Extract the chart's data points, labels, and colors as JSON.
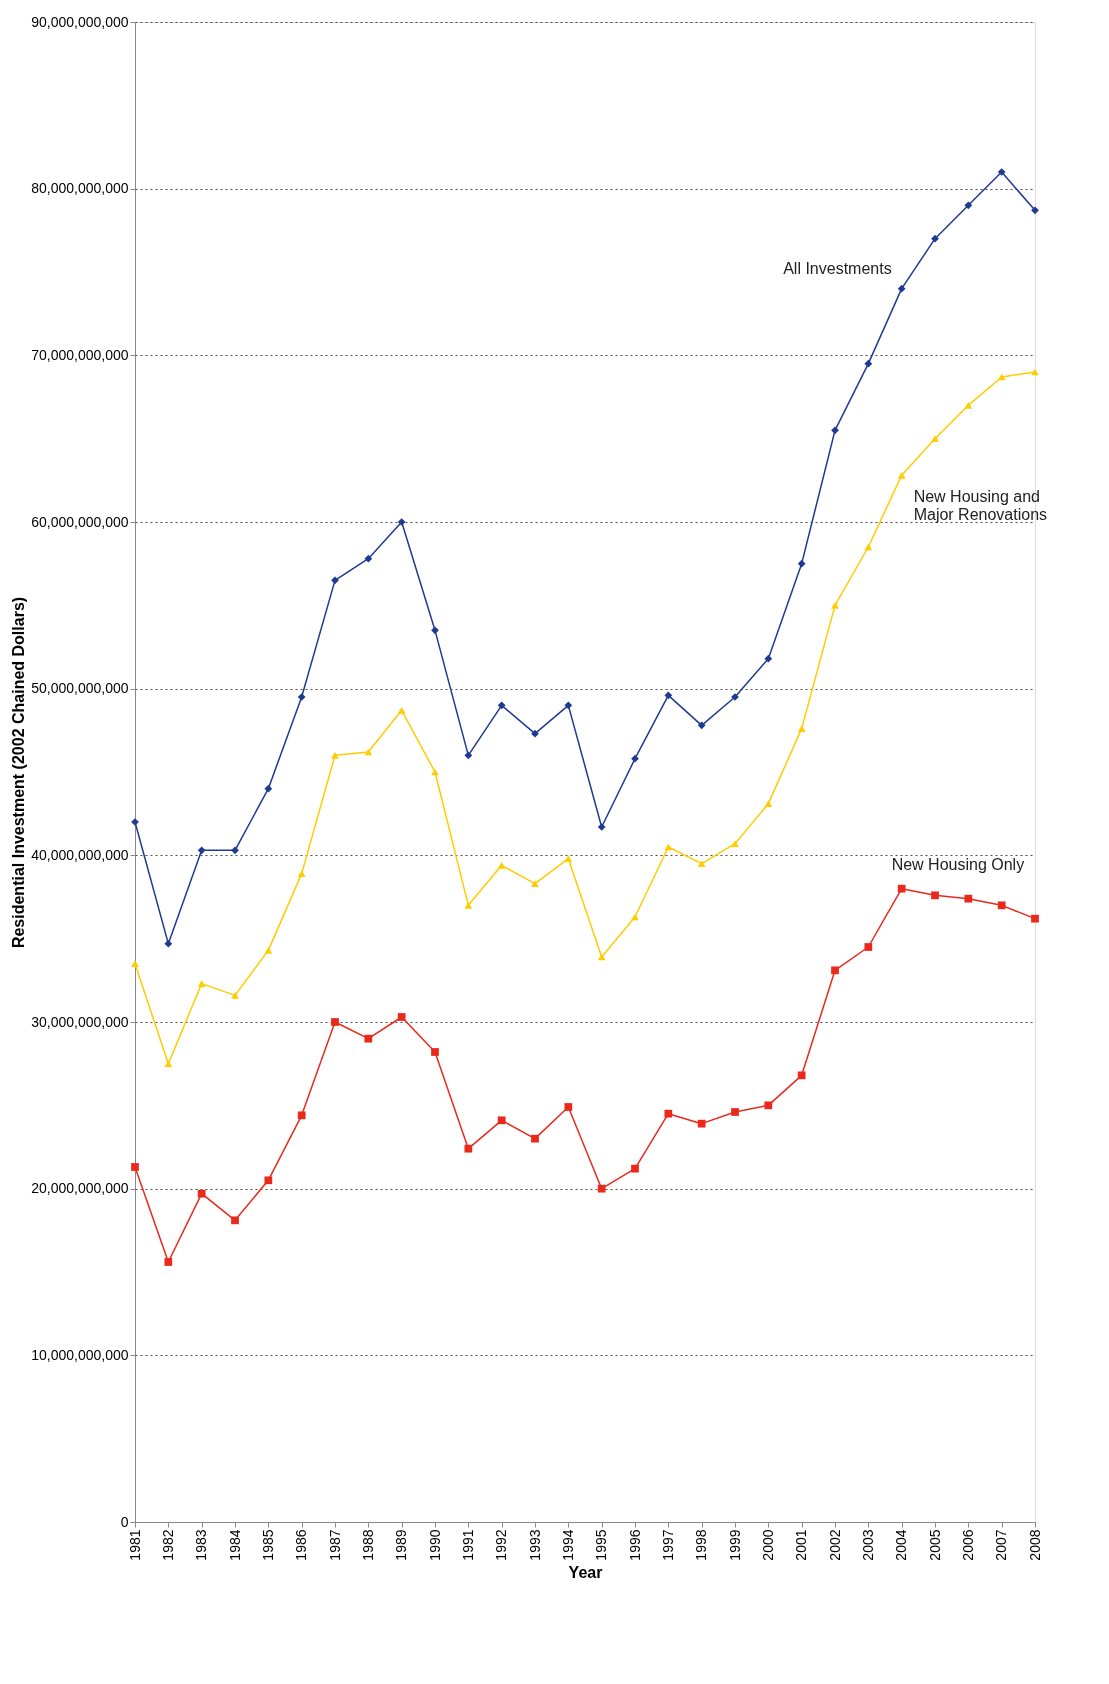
{
  "chart_data": {
    "type": "line",
    "xlabel": "Year",
    "ylabel": "Residential Investment (2002 Chained Dollars)",
    "categories": [
      "1981",
      "1982",
      "1983",
      "1984",
      "1985",
      "1986",
      "1987",
      "1988",
      "1989",
      "1990",
      "1991",
      "1992",
      "1993",
      "1994",
      "1995",
      "1996",
      "1997",
      "1998",
      "1999",
      "2000",
      "2001",
      "2002",
      "2003",
      "2004",
      "2005",
      "2006",
      "2007",
      "2008"
    ],
    "series": [
      {
        "name": "All Investments",
        "color": "#1f3a93",
        "marker": "diamond",
        "values": [
          42000000000,
          34700000000,
          40300000000,
          40300000000,
          44000000000,
          49500000000,
          56500000000,
          57800000000,
          60000000000,
          53500000000,
          46000000000,
          49000000000,
          47300000000,
          49000000000,
          41700000000,
          45800000000,
          49600000000,
          47800000000,
          49500000000,
          51800000000,
          57500000000,
          65500000000,
          69500000000,
          74000000000,
          77000000000,
          79000000000,
          81000000000,
          78700000000
        ]
      },
      {
        "name": "New Housing and Major Renovations",
        "color": "#ffcc00",
        "marker": "triangle",
        "values": [
          33500000000,
          27500000000,
          32300000000,
          31600000000,
          34300000000,
          38900000000,
          46000000000,
          46200000000,
          48700000000,
          45000000000,
          37000000000,
          39400000000,
          38300000000,
          39800000000,
          33900000000,
          36300000000,
          40500000000,
          39500000000,
          40700000000,
          43100000000,
          47600000000,
          55000000000,
          58500000000,
          62800000000,
          65000000000,
          67000000000,
          68700000000,
          69000000000
        ]
      },
      {
        "name": "New Housing Only",
        "color": "#e8291c",
        "marker": "square",
        "values": [
          21300000000,
          15600000000,
          19700000000,
          18100000000,
          20500000000,
          24400000000,
          30000000000,
          29000000000,
          30300000000,
          28200000000,
          22400000000,
          24100000000,
          23000000000,
          24900000000,
          20000000000,
          21200000000,
          24500000000,
          23900000000,
          24600000000,
          25000000000,
          26800000000,
          33100000000,
          34500000000,
          38000000000,
          37600000000,
          37400000000,
          37000000000,
          36200000000
        ]
      }
    ],
    "ylim": [
      0,
      90000000000
    ],
    "yticks": [
      0,
      {
        "value": 10000000000,
        "label": "10,000,000,000"
      },
      {
        "value": 20000000000,
        "label": "20,000,000,000"
      },
      {
        "value": 30000000000,
        "label": "30,000,000,000"
      },
      {
        "value": 40000000000,
        "label": "40,000,000,000"
      },
      {
        "value": 50000000000,
        "label": "50,000,000,000"
      },
      {
        "value": 60000000000,
        "label": "60,000,000,000"
      },
      {
        "value": 70000000000,
        "label": "70,000,000,000"
      },
      {
        "value": 80000000000,
        "label": "80,000,000,000"
      },
      {
        "value": 90000000000,
        "label": "90,000,000,000"
      }
    ],
    "grid": "y"
  }
}
